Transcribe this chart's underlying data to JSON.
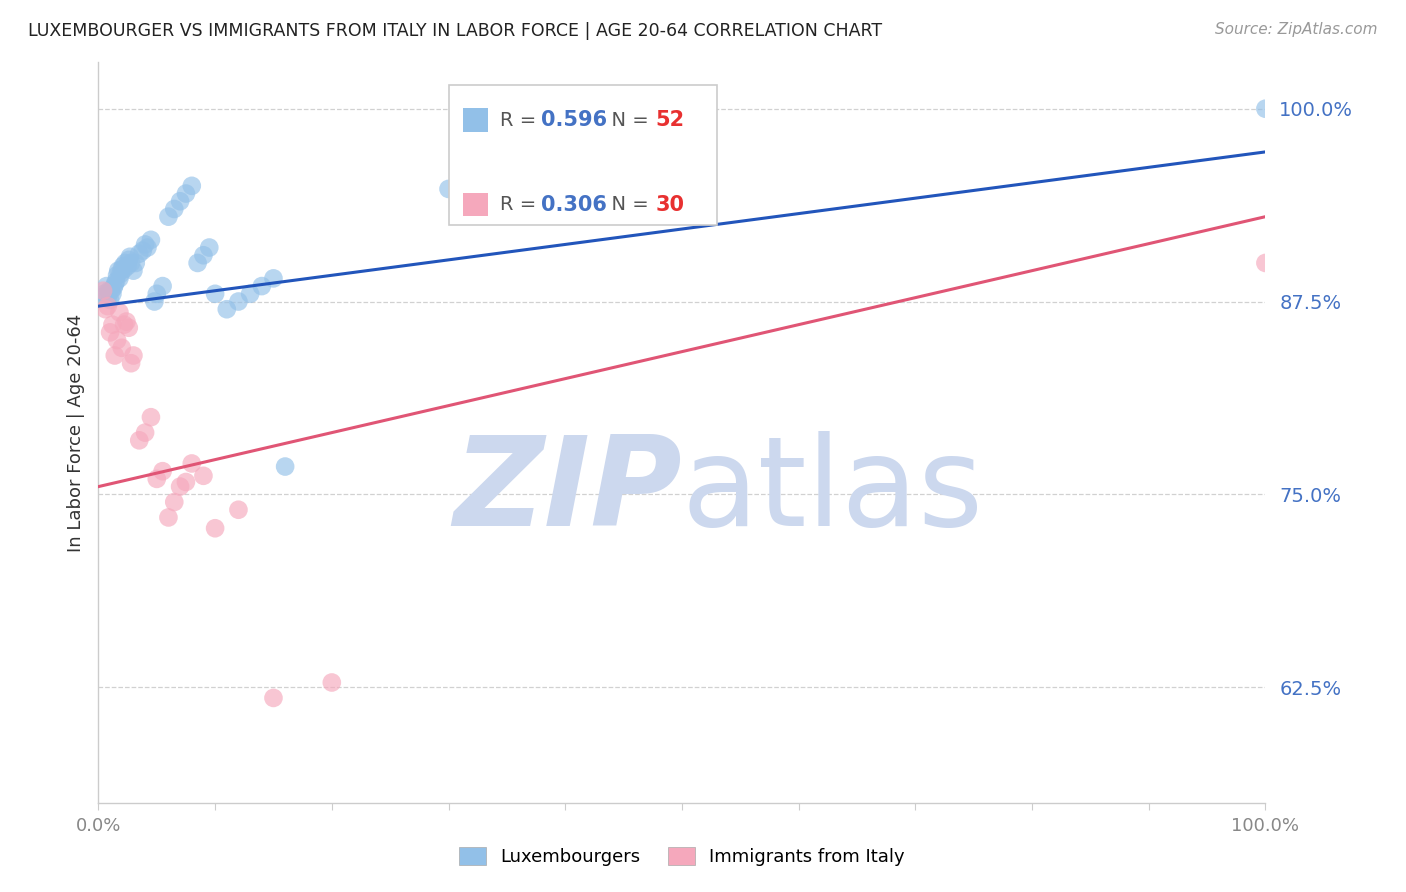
{
  "title": "LUXEMBOURGER VS IMMIGRANTS FROM ITALY IN LABOR FORCE | AGE 20-64 CORRELATION CHART",
  "source": "Source: ZipAtlas.com",
  "ylabel": "In Labor Force | Age 20-64",
  "xlim": [
    0.0,
    1.0
  ],
  "ylim": [
    0.55,
    1.03
  ],
  "yticks": [
    0.625,
    0.75,
    0.875,
    1.0
  ],
  "ytick_labels": [
    "62.5%",
    "75.0%",
    "87.5%",
    "100.0%"
  ],
  "blue_R": "0.596",
  "blue_N": "52",
  "pink_R": "0.306",
  "pink_N": "30",
  "blue_color": "#92c0e8",
  "pink_color": "#f5a8bc",
  "blue_line_color": "#2255bb",
  "pink_line_color": "#e05575",
  "legend_R_blue_color": "#4472c4",
  "legend_N_red_color": "#e83030",
  "watermark_zip": "ZIP",
  "watermark_atlas": "atlas",
  "watermark_color": "#ccd8ee",
  "background_color": "#ffffff",
  "grid_color": "#cccccc",
  "title_color": "#222222",
  "ytick_color": "#4472c4",
  "xtick_color": "#888888",
  "blue_line_x0": 0.0,
  "blue_line_y0": 0.872,
  "blue_line_x1": 1.0,
  "blue_line_y1": 0.972,
  "pink_line_x0": 0.0,
  "pink_line_y0": 0.755,
  "pink_line_x1": 1.0,
  "pink_line_y1": 0.93,
  "blue_scatter_x": [
    0.003,
    0.005,
    0.007,
    0.008,
    0.009,
    0.01,
    0.011,
    0.012,
    0.013,
    0.014,
    0.015,
    0.016,
    0.017,
    0.018,
    0.019,
    0.02,
    0.021,
    0.022,
    0.023,
    0.025,
    0.026,
    0.027,
    0.028,
    0.03,
    0.032,
    0.035,
    0.038,
    0.04,
    0.042,
    0.045,
    0.048,
    0.05,
    0.055,
    0.06,
    0.065,
    0.07,
    0.075,
    0.08,
    0.085,
    0.09,
    0.095,
    0.1,
    0.11,
    0.12,
    0.13,
    0.14,
    0.15,
    0.16,
    0.3,
    0.31,
    0.32,
    1.0
  ],
  "blue_scatter_y": [
    0.878,
    0.88,
    0.885,
    0.878,
    0.882,
    0.876,
    0.882,
    0.88,
    0.884,
    0.886,
    0.888,
    0.892,
    0.895,
    0.89,
    0.893,
    0.896,
    0.898,
    0.896,
    0.9,
    0.898,
    0.902,
    0.904,
    0.9,
    0.895,
    0.9,
    0.906,
    0.908,
    0.912,
    0.91,
    0.915,
    0.875,
    0.88,
    0.885,
    0.93,
    0.935,
    0.94,
    0.945,
    0.95,
    0.9,
    0.905,
    0.91,
    0.88,
    0.87,
    0.875,
    0.88,
    0.885,
    0.89,
    0.768,
    0.948,
    0.96,
    0.968,
    1.0
  ],
  "pink_scatter_x": [
    0.004,
    0.006,
    0.008,
    0.01,
    0.012,
    0.014,
    0.016,
    0.018,
    0.02,
    0.022,
    0.024,
    0.026,
    0.028,
    0.03,
    0.035,
    0.04,
    0.045,
    0.05,
    0.055,
    0.06,
    0.065,
    0.07,
    0.075,
    0.08,
    0.09,
    0.1,
    0.12,
    0.15,
    0.2,
    1.0
  ],
  "pink_scatter_y": [
    0.882,
    0.87,
    0.872,
    0.855,
    0.86,
    0.84,
    0.85,
    0.868,
    0.845,
    0.86,
    0.862,
    0.858,
    0.835,
    0.84,
    0.785,
    0.79,
    0.8,
    0.76,
    0.765,
    0.735,
    0.745,
    0.755,
    0.758,
    0.77,
    0.762,
    0.728,
    0.74,
    0.618,
    0.628,
    0.9
  ]
}
